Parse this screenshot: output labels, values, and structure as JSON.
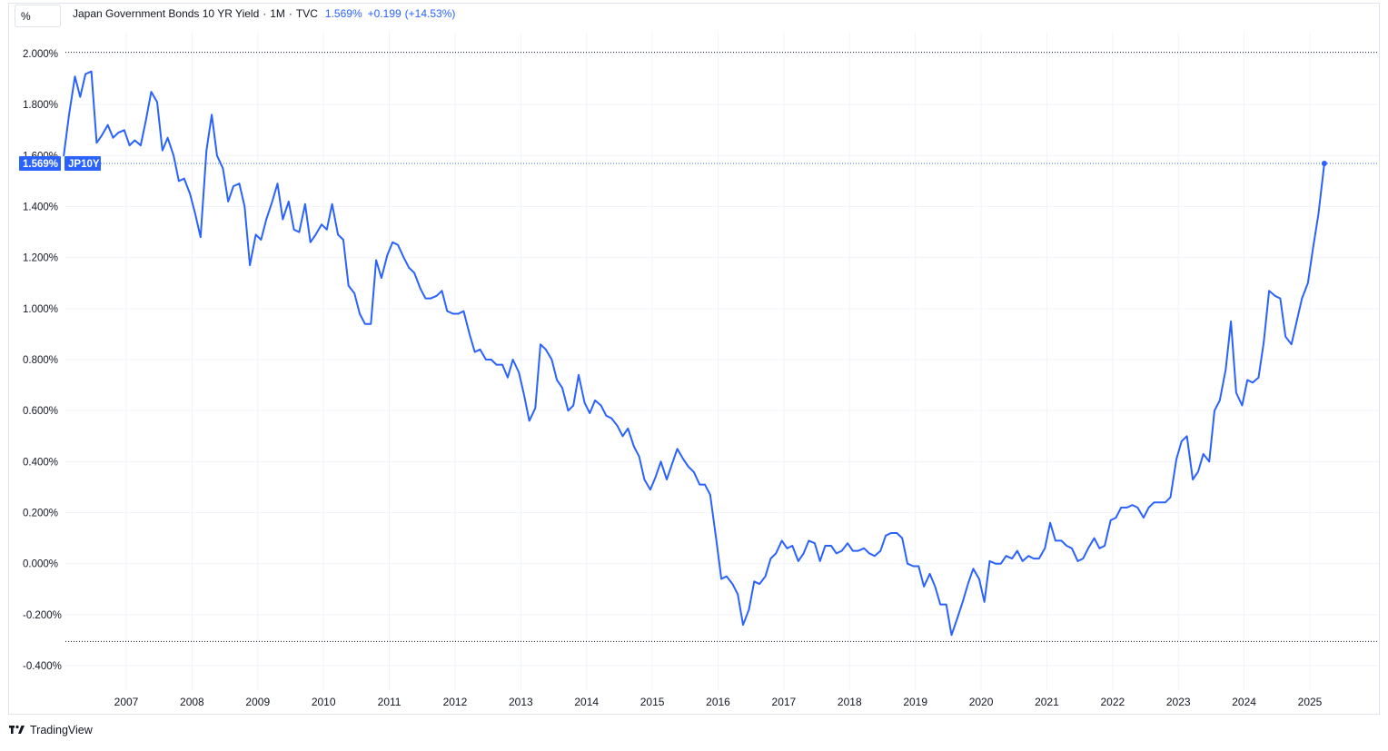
{
  "header": {
    "unit_label": "%",
    "title": "Japan Government Bonds 10 YR Yield",
    "interval": "1M",
    "source": "TVC",
    "last_value": "1.569%",
    "change": "+0.199",
    "change_pct": "(+14.53%)"
  },
  "price_tag": {
    "value": "1.569%",
    "symbol": "JP10Y"
  },
  "branding": {
    "name": "TradingView"
  },
  "colors": {
    "line": "#2962ff",
    "tag_bg": "#2962ff",
    "grid": "#f0f3fa",
    "text": "#131722"
  },
  "chart_data": {
    "type": "line",
    "title": "Japan Government Bonds 10 YR Yield",
    "xlabel": "",
    "ylabel": "",
    "ylim": [
      -0.5,
      2.1
    ],
    "xlim": [
      2006.05,
      2026.05
    ],
    "grid": true,
    "y_ticks": [
      "-0.400%",
      "-0.200%",
      "0.000%",
      "0.200%",
      "0.400%",
      "0.600%",
      "0.800%",
      "1.000%",
      "1.200%",
      "1.400%",
      "1.600%",
      "1.800%",
      "2.000%"
    ],
    "y_tick_values": [
      -0.4,
      -0.2,
      0.0,
      0.2,
      0.4,
      0.6,
      0.8,
      1.0,
      1.2,
      1.4,
      1.6,
      1.8,
      2.0
    ],
    "x_ticks": [
      "2007",
      "2008",
      "2009",
      "2010",
      "2011",
      "2012",
      "2013",
      "2014",
      "2015",
      "2016",
      "2017",
      "2018",
      "2019",
      "2020",
      "2021",
      "2022",
      "2023",
      "2024",
      "2025"
    ],
    "x_tick_values": [
      2007,
      2008,
      2009,
      2010,
      2011,
      2012,
      2013,
      2014,
      2015,
      2016,
      2017,
      2018,
      2019,
      2020,
      2021,
      2022,
      2023,
      2024,
      2025
    ],
    "series": [
      {
        "symbol": "JP10Y",
        "x": [
          2006.05,
          2006.13,
          2006.22,
          2006.3,
          2006.38,
          2006.47,
          2006.55,
          2006.63,
          2006.72,
          2006.8,
          2006.88,
          2006.97,
          2007.05,
          2007.13,
          2007.22,
          2007.3,
          2007.38,
          2007.47,
          2007.55,
          2007.63,
          2007.72,
          2007.8,
          2007.88,
          2007.97,
          2008.05,
          2008.13,
          2008.22,
          2008.3,
          2008.38,
          2008.47,
          2008.55,
          2008.63,
          2008.72,
          2008.8,
          2008.88,
          2008.97,
          2009.05,
          2009.13,
          2009.22,
          2009.3,
          2009.38,
          2009.47,
          2009.55,
          2009.63,
          2009.72,
          2009.8,
          2009.88,
          2009.97,
          2010.05,
          2010.13,
          2010.22,
          2010.3,
          2010.38,
          2010.47,
          2010.55,
          2010.63,
          2010.72,
          2010.8,
          2010.88,
          2010.97,
          2011.05,
          2011.13,
          2011.22,
          2011.3,
          2011.38,
          2011.47,
          2011.55,
          2011.63,
          2011.72,
          2011.8,
          2011.88,
          2011.97,
          2012.05,
          2012.13,
          2012.22,
          2012.3,
          2012.38,
          2012.47,
          2012.55,
          2012.63,
          2012.72,
          2012.8,
          2012.88,
          2012.97,
          2013.05,
          2013.13,
          2013.22,
          2013.3,
          2013.38,
          2013.47,
          2013.55,
          2013.63,
          2013.72,
          2013.8,
          2013.88,
          2013.97,
          2014.05,
          2014.13,
          2014.22,
          2014.3,
          2014.38,
          2014.47,
          2014.55,
          2014.63,
          2014.72,
          2014.8,
          2014.88,
          2014.97,
          2015.05,
          2015.13,
          2015.22,
          2015.3,
          2015.38,
          2015.47,
          2015.55,
          2015.63,
          2015.72,
          2015.8,
          2015.88,
          2015.97,
          2016.05,
          2016.13,
          2016.22,
          2016.3,
          2016.38,
          2016.47,
          2016.55,
          2016.63,
          2016.72,
          2016.8,
          2016.88,
          2016.97,
          2017.05,
          2017.13,
          2017.22,
          2017.3,
          2017.38,
          2017.47,
          2017.55,
          2017.63,
          2017.72,
          2017.8,
          2017.88,
          2017.97,
          2018.05,
          2018.13,
          2018.22,
          2018.3,
          2018.38,
          2018.47,
          2018.55,
          2018.63,
          2018.72,
          2018.8,
          2018.88,
          2018.97,
          2019.05,
          2019.13,
          2019.22,
          2019.3,
          2019.38,
          2019.47,
          2019.55,
          2019.63,
          2019.72,
          2019.8,
          2019.88,
          2019.97,
          2020.05,
          2020.13,
          2020.22,
          2020.3,
          2020.38,
          2020.47,
          2020.55,
          2020.63,
          2020.72,
          2020.8,
          2020.88,
          2020.97,
          2021.05,
          2021.13,
          2021.22,
          2021.3,
          2021.38,
          2021.47,
          2021.55,
          2021.63,
          2021.72,
          2021.8,
          2021.88,
          2021.97,
          2022.05,
          2022.13,
          2022.22,
          2022.3,
          2022.38,
          2022.47,
          2022.55,
          2022.63,
          2022.72,
          2022.8,
          2022.88,
          2022.97,
          2023.05,
          2023.13,
          2023.22,
          2023.3,
          2023.38,
          2023.47,
          2023.55,
          2023.63,
          2023.72,
          2023.8,
          2023.88,
          2023.97,
          2024.05,
          2024.13,
          2024.22,
          2024.3,
          2024.38,
          2024.47,
          2024.55,
          2024.63,
          2024.72,
          2024.8,
          2024.88,
          2024.97,
          2025.05,
          2025.13,
          2025.22
        ],
        "y": [
          1.6,
          1.76,
          1.91,
          1.83,
          1.92,
          1.93,
          1.65,
          1.68,
          1.72,
          1.67,
          1.69,
          1.7,
          1.64,
          1.66,
          1.64,
          1.74,
          1.85,
          1.81,
          1.62,
          1.67,
          1.6,
          1.5,
          1.51,
          1.45,
          1.37,
          1.28,
          1.62,
          1.76,
          1.6,
          1.55,
          1.42,
          1.48,
          1.49,
          1.4,
          1.17,
          1.29,
          1.27,
          1.35,
          1.42,
          1.49,
          1.35,
          1.42,
          1.31,
          1.3,
          1.41,
          1.26,
          1.29,
          1.33,
          1.31,
          1.41,
          1.29,
          1.27,
          1.09,
          1.06,
          0.98,
          0.94,
          0.94,
          1.19,
          1.12,
          1.21,
          1.26,
          1.25,
          1.2,
          1.16,
          1.14,
          1.08,
          1.04,
          1.04,
          1.05,
          1.07,
          0.99,
          0.98,
          0.98,
          0.99,
          0.9,
          0.83,
          0.84,
          0.8,
          0.8,
          0.78,
          0.78,
          0.73,
          0.8,
          0.75,
          0.66,
          0.56,
          0.61,
          0.86,
          0.84,
          0.8,
          0.72,
          0.69,
          0.6,
          0.62,
          0.74,
          0.63,
          0.59,
          0.64,
          0.62,
          0.58,
          0.57,
          0.54,
          0.5,
          0.53,
          0.46,
          0.42,
          0.33,
          0.29,
          0.34,
          0.4,
          0.33,
          0.39,
          0.45,
          0.41,
          0.38,
          0.36,
          0.31,
          0.31,
          0.27,
          0.1,
          -0.06,
          -0.05,
          -0.08,
          -0.12,
          -0.24,
          -0.18,
          -0.07,
          -0.08,
          -0.05,
          0.02,
          0.04,
          0.09,
          0.06,
          0.07,
          0.01,
          0.04,
          0.09,
          0.08,
          0.01,
          0.07,
          0.07,
          0.04,
          0.05,
          0.08,
          0.05,
          0.05,
          0.06,
          0.04,
          0.03,
          0.05,
          0.11,
          0.12,
          0.12,
          0.1,
          0.0,
          -0.01,
          -0.01,
          -0.09,
          -0.04,
          -0.09,
          -0.16,
          -0.16,
          -0.28,
          -0.22,
          -0.15,
          -0.08,
          -0.02,
          -0.06,
          -0.15,
          0.01,
          0.0,
          0.0,
          0.03,
          0.02,
          0.05,
          0.01,
          0.03,
          0.02,
          0.02,
          0.06,
          0.16,
          0.09,
          0.09,
          0.07,
          0.06,
          0.01,
          0.02,
          0.06,
          0.1,
          0.06,
          0.07,
          0.17,
          0.18,
          0.22,
          0.22,
          0.23,
          0.22,
          0.18,
          0.22,
          0.24,
          0.24,
          0.24,
          0.26,
          0.41,
          0.48,
          0.5,
          0.33,
          0.36,
          0.43,
          0.4,
          0.6,
          0.64,
          0.76,
          0.95,
          0.67,
          0.62,
          0.72,
          0.71,
          0.73,
          0.87,
          1.07,
          1.05,
          1.04,
          0.89,
          0.86,
          0.95,
          1.04,
          1.1,
          1.24,
          1.37,
          1.569
        ]
      }
    ],
    "markers": [
      {
        "label": "1.569%",
        "x": 2025.22,
        "y": 1.569
      }
    ],
    "reference_lines": [
      2.005,
      -0.305
    ]
  }
}
